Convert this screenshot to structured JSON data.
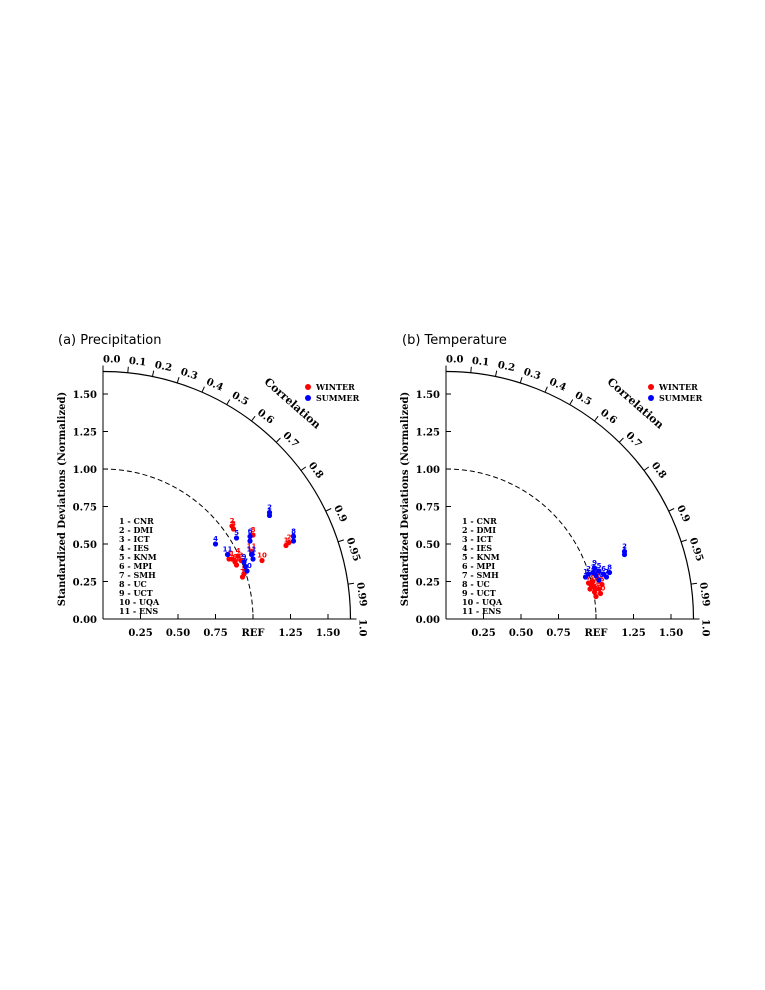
{
  "chart_data": [
    {
      "type": "scatter",
      "title": "(a) Precipitation",
      "diagram": "taylor",
      "ylabel": "Standardized Deviations (Normalized)",
      "corr_label": "Correlation",
      "ref_label": "REF",
      "xticks": [
        "0.25",
        "0.50",
        "0.75",
        "REF",
        "1.25",
        "1.50"
      ],
      "yticks": [
        "0.00",
        "0.25",
        "0.50",
        "0.75",
        "1.00",
        "1.25",
        "1.50"
      ],
      "corr_ticks": [
        "0.0",
        "0.1",
        "0.2",
        "0.3",
        "0.4",
        "0.5",
        "0.6",
        "0.7",
        "0.8",
        "0.9",
        "0.95",
        "0.99",
        "1.0"
      ],
      "sd_max": 1.65,
      "legend": [
        {
          "name": "WINTER",
          "color": "#ff0000"
        },
        {
          "name": "SUMMER",
          "color": "#0000ff"
        }
      ],
      "models": [
        "1 - CNR",
        "2 - DMI",
        "3 - ICT",
        "4 - IES",
        "5 - KNM",
        "6 - MPI",
        "7 - SMH",
        "8 - UC",
        "9 - UCT",
        "10 - UQA",
        "11 - ENS"
      ],
      "series": [
        {
          "name": "WINTER",
          "points": [
            {
              "x": 0.86,
              "y": 0.4,
              "label": "1"
            },
            {
              "x": 0.86,
              "y": 0.62,
              "label": "2"
            },
            {
              "x": 0.87,
              "y": 0.6,
              "label": "3"
            },
            {
              "x": 0.84,
              "y": 0.4,
              "label": "4"
            },
            {
              "x": 0.94,
              "y": 0.3,
              "label": "5"
            },
            {
              "x": 0.88,
              "y": 0.38,
              "label": "6"
            },
            {
              "x": 0.93,
              "y": 0.28,
              "label": "7"
            },
            {
              "x": 1.0,
              "y": 0.56,
              "label": "8"
            },
            {
              "x": 0.89,
              "y": 0.36,
              "label": "9"
            },
            {
              "x": 1.06,
              "y": 0.39,
              "label": "10"
            },
            {
              "x": 0.99,
              "y": 0.45,
              "label": "11"
            },
            {
              "x": 1.22,
              "y": 0.49,
              "label": "1"
            },
            {
              "x": 1.24,
              "y": 0.51,
              "label": "2"
            },
            {
              "x": 0.92,
              "y": 0.39,
              "label": "3"
            },
            {
              "x": 0.9,
              "y": 0.42,
              "label": "4"
            }
          ]
        },
        {
          "name": "SUMMER",
          "points": [
            {
              "x": 0.75,
              "y": 0.5,
              "label": "4"
            },
            {
              "x": 0.89,
              "y": 0.54,
              "label": "5"
            },
            {
              "x": 0.98,
              "y": 0.55,
              "label": "6"
            },
            {
              "x": 0.98,
              "y": 0.52,
              "label": "3"
            },
            {
              "x": 1.11,
              "y": 0.71,
              "label": "2"
            },
            {
              "x": 1.11,
              "y": 0.69,
              "label": "1"
            },
            {
              "x": 1.27,
              "y": 0.55,
              "label": "8"
            },
            {
              "x": 1.27,
              "y": 0.52,
              "label": "9"
            },
            {
              "x": 0.83,
              "y": 0.43,
              "label": "11"
            },
            {
              "x": 0.95,
              "y": 0.35,
              "label": "7"
            },
            {
              "x": 0.96,
              "y": 0.32,
              "label": "10"
            },
            {
              "x": 0.99,
              "y": 0.43,
              "label": "11"
            },
            {
              "x": 1.0,
              "y": 0.4,
              "label": "4"
            },
            {
              "x": 0.94,
              "y": 0.38,
              "label": "9"
            }
          ]
        }
      ]
    },
    {
      "type": "scatter",
      "title": "(b) Temperature",
      "diagram": "taylor",
      "ylabel": "Standardized Deviations (Normalized)",
      "corr_label": "Correlation",
      "ref_label": "REF",
      "xticks": [
        "0.25",
        "0.50",
        "0.75",
        "REF",
        "1.25",
        "1.50"
      ],
      "yticks": [
        "0.00",
        "0.25",
        "0.50",
        "0.75",
        "1.00",
        "1.25",
        "1.50"
      ],
      "corr_ticks": [
        "0.0",
        "0.1",
        "0.2",
        "0.3",
        "0.4",
        "0.5",
        "0.6",
        "0.7",
        "0.8",
        "0.9",
        "0.95",
        "0.99",
        "1.0"
      ],
      "sd_max": 1.65,
      "legend": [
        {
          "name": "WINTER",
          "color": "#ff0000"
        },
        {
          "name": "SUMMER",
          "color": "#0000ff"
        }
      ],
      "models": [
        "1 - CNR",
        "2 - DMI",
        "3 - ICT",
        "4 - IES",
        "5 - KNM",
        "6 - MPI",
        "7 - SMH",
        "8 - UC",
        "9 - UCT",
        "10 - UQA",
        "11 - ENS"
      ],
      "series": [
        {
          "name": "WINTER",
          "points": [
            {
              "x": 1.0,
              "y": 0.15,
              "label": "1"
            },
            {
              "x": 0.99,
              "y": 0.18,
              "label": "2"
            },
            {
              "x": 1.02,
              "y": 0.2,
              "label": "3"
            },
            {
              "x": 0.97,
              "y": 0.22,
              "label": "4"
            },
            {
              "x": 1.04,
              "y": 0.23,
              "label": "5"
            },
            {
              "x": 0.98,
              "y": 0.25,
              "label": "6"
            },
            {
              "x": 0.95,
              "y": 0.24,
              "label": "7"
            },
            {
              "x": 1.01,
              "y": 0.27,
              "label": "8"
            },
            {
              "x": 0.96,
              "y": 0.2,
              "label": "9"
            },
            {
              "x": 1.03,
              "y": 0.17,
              "label": "10"
            },
            {
              "x": 0.99,
              "y": 0.21,
              "label": "11"
            }
          ]
        },
        {
          "name": "SUMMER",
          "points": [
            {
              "x": 0.93,
              "y": 0.28,
              "label": "1"
            },
            {
              "x": 0.95,
              "y": 0.3,
              "label": "2"
            },
            {
              "x": 0.98,
              "y": 0.31,
              "label": "3"
            },
            {
              "x": 1.0,
              "y": 0.29,
              "label": "4"
            },
            {
              "x": 1.02,
              "y": 0.32,
              "label": "5"
            },
            {
              "x": 1.05,
              "y": 0.3,
              "label": "6"
            },
            {
              "x": 1.07,
              "y": 0.28,
              "label": "7"
            },
            {
              "x": 1.09,
              "y": 0.31,
              "label": "8"
            },
            {
              "x": 0.99,
              "y": 0.34,
              "label": "9"
            },
            {
              "x": 1.02,
              "y": 0.26,
              "label": "10"
            },
            {
              "x": 1.19,
              "y": 0.45,
              "label": "2"
            },
            {
              "x": 1.19,
              "y": 0.43,
              "label": "1"
            }
          ]
        }
      ]
    }
  ]
}
